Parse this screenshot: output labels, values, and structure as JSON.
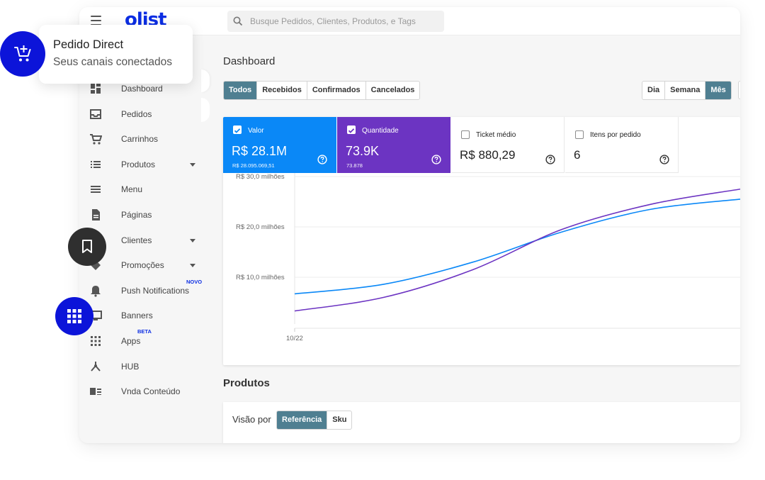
{
  "brand": {
    "logo_text": "olist",
    "color": "#0c2ee3"
  },
  "search": {
    "placeholder": "Busque Pedidos, Clientes, Produtos, e Tags"
  },
  "sidebar": {
    "items": [
      {
        "label": "Dashboard",
        "icon": "dashboard-icon"
      },
      {
        "label": "Pedidos",
        "icon": "inbox-icon"
      },
      {
        "label": "Carrinhos",
        "icon": "cart-icon"
      },
      {
        "label": "Produtos",
        "icon": "list-icon",
        "expandable": true
      },
      {
        "label": "Menu",
        "icon": "menu-icon"
      },
      {
        "label": "Páginas",
        "icon": "page-icon"
      },
      {
        "label": "Clientes",
        "icon": "people-icon",
        "expandable": true
      },
      {
        "label": "Promoções",
        "icon": "tag-icon",
        "expandable": true
      },
      {
        "label": "Push Notifications",
        "icon": "bell-icon",
        "badge": "NOVO"
      },
      {
        "label": "Banners",
        "icon": "monitor-icon"
      },
      {
        "label": "Apps",
        "icon": "apps-grid-icon",
        "badge": "BETA"
      },
      {
        "label": "HUB",
        "icon": "hub-icon"
      },
      {
        "label": "Vnda Conteúdo",
        "icon": "content-icon"
      }
    ]
  },
  "main": {
    "title": "Dashboard",
    "status_filters": [
      "Todos",
      "Recebidos",
      "Confirmados",
      "Cancelados"
    ],
    "status_active": "Todos",
    "period_filters": [
      "Dia",
      "Semana",
      "Mês"
    ],
    "period_active": "Mês"
  },
  "metrics": [
    {
      "name": "Valor",
      "value": "R$ 28.1M",
      "sub": "R$ 28.095.069,51",
      "checked": true,
      "color": "#0a88f7"
    },
    {
      "name": "Quantidade",
      "value": "73.9K",
      "sub": "73.878",
      "checked": true,
      "color": "#6c34c2"
    },
    {
      "name": "Ticket médio",
      "value": "R$ 880,29",
      "checked": false
    },
    {
      "name": "Itens por pedido",
      "value": "6",
      "checked": false
    }
  ],
  "chart_data": {
    "type": "line",
    "y_tick_labels": [
      "R$ 30,0 milhões",
      "R$ 20,0 milhões",
      "R$ 10,0 milhões"
    ],
    "y_ticks": [
      30,
      20,
      10
    ],
    "ylim": [
      0,
      30
    ],
    "x_tick_labels": [
      "10/22"
    ],
    "grid": true,
    "series": [
      {
        "name": "Valor",
        "color": "#0a88f7",
        "x": [
          0,
          0.2,
          0.4,
          0.6,
          0.8,
          1.0
        ],
        "y": [
          6.7,
          8.6,
          13.0,
          19.0,
          23.5,
          25.5
        ]
      },
      {
        "name": "Quantidade",
        "color": "#6c34c2",
        "x": [
          0,
          0.2,
          0.4,
          0.6,
          0.8,
          1.0
        ],
        "y": [
          3.3,
          6.0,
          11.5,
          19.5,
          24.5,
          27.5
        ]
      }
    ]
  },
  "produtos": {
    "title": "Produtos",
    "visao_label": "Visão por",
    "view_options": [
      "Referência",
      "Sku"
    ],
    "view_active": "Referência"
  },
  "callout": {
    "title": "Pedido Direct",
    "subtitle": "Seus canais conectados"
  },
  "floating_buttons": [
    "add-cart-icon",
    "bookmark-icon",
    "apps-grid-icon"
  ]
}
